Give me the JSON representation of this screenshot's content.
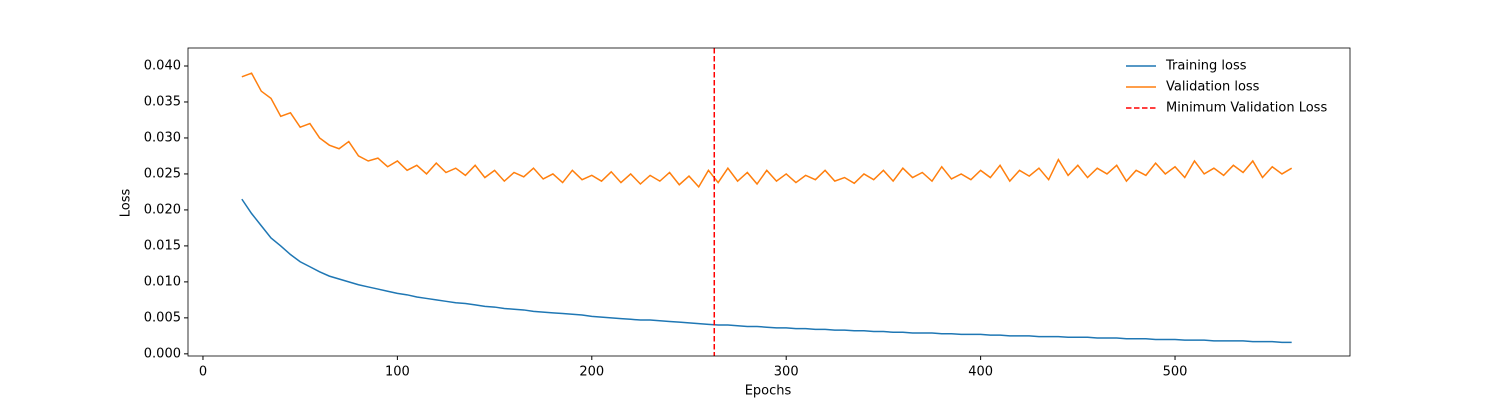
{
  "chart_data": {
    "type": "line",
    "xlabel": "Epochs",
    "ylabel": "Loss",
    "x": [
      20,
      25,
      30,
      35,
      40,
      45,
      50,
      55,
      60,
      65,
      70,
      75,
      80,
      85,
      90,
      95,
      100,
      105,
      110,
      115,
      120,
      125,
      130,
      135,
      140,
      145,
      150,
      155,
      160,
      165,
      170,
      175,
      180,
      185,
      190,
      195,
      200,
      205,
      210,
      215,
      220,
      225,
      230,
      235,
      240,
      245,
      250,
      255,
      260,
      265,
      270,
      275,
      280,
      285,
      290,
      295,
      300,
      305,
      310,
      315,
      320,
      325,
      330,
      335,
      340,
      345,
      350,
      355,
      360,
      365,
      370,
      375,
      380,
      385,
      390,
      395,
      400,
      405,
      410,
      415,
      420,
      425,
      430,
      435,
      440,
      445,
      450,
      455,
      460,
      465,
      470,
      475,
      480,
      485,
      490,
      495,
      500,
      505,
      510,
      515,
      520,
      525,
      530,
      535,
      540,
      545,
      550,
      555,
      560
    ],
    "series": [
      {
        "name": "Training loss",
        "color": "#1f77b4",
        "values": [
          0.0215,
          0.0195,
          0.0178,
          0.0161,
          0.015,
          0.0138,
          0.0128,
          0.0121,
          0.0114,
          0.0108,
          0.0104,
          0.01,
          0.0096,
          0.0093,
          0.009,
          0.0087,
          0.0084,
          0.0082,
          0.0079,
          0.0077,
          0.0075,
          0.0073,
          0.0071,
          0.007,
          0.0068,
          0.0066,
          0.0065,
          0.0063,
          0.0062,
          0.0061,
          0.0059,
          0.0058,
          0.0057,
          0.0056,
          0.0055,
          0.0054,
          0.0052,
          0.0051,
          0.005,
          0.0049,
          0.0048,
          0.0047,
          0.0047,
          0.0046,
          0.0045,
          0.0044,
          0.0043,
          0.0042,
          0.0041,
          0.004,
          0.004,
          0.0039,
          0.0038,
          0.0038,
          0.0037,
          0.0036,
          0.0036,
          0.0035,
          0.0035,
          0.0034,
          0.0034,
          0.0033,
          0.0033,
          0.0032,
          0.0032,
          0.0031,
          0.0031,
          0.003,
          0.003,
          0.0029,
          0.0029,
          0.0029,
          0.0028,
          0.0028,
          0.0027,
          0.0027,
          0.0027,
          0.0026,
          0.0026,
          0.0025,
          0.0025,
          0.0025,
          0.0024,
          0.0024,
          0.0024,
          0.0023,
          0.0023,
          0.0023,
          0.0022,
          0.0022,
          0.0022,
          0.0021,
          0.0021,
          0.0021,
          0.002,
          0.002,
          0.002,
          0.0019,
          0.0019,
          0.0019,
          0.0018,
          0.0018,
          0.0018,
          0.0018,
          0.0017,
          0.0017,
          0.0017,
          0.0016,
          0.0016
        ]
      },
      {
        "name": "Validation loss",
        "color": "#ff7f0e",
        "values": [
          0.0385,
          0.039,
          0.0365,
          0.0355,
          0.033,
          0.0335,
          0.0315,
          0.032,
          0.03,
          0.029,
          0.0285,
          0.0295,
          0.0275,
          0.0268,
          0.0272,
          0.026,
          0.0268,
          0.0255,
          0.0262,
          0.025,
          0.0265,
          0.0252,
          0.0258,
          0.0248,
          0.0262,
          0.0245,
          0.0255,
          0.024,
          0.0252,
          0.0246,
          0.0258,
          0.0243,
          0.025,
          0.0238,
          0.0255,
          0.0242,
          0.0248,
          0.024,
          0.0253,
          0.0238,
          0.025,
          0.0236,
          0.0248,
          0.024,
          0.0252,
          0.0235,
          0.0247,
          0.0232,
          0.0255,
          0.0238,
          0.0258,
          0.024,
          0.0252,
          0.0236,
          0.0255,
          0.024,
          0.025,
          0.0238,
          0.0248,
          0.0242,
          0.0255,
          0.024,
          0.0245,
          0.0237,
          0.025,
          0.0242,
          0.0255,
          0.024,
          0.0258,
          0.0245,
          0.0252,
          0.024,
          0.026,
          0.0243,
          0.025,
          0.0242,
          0.0255,
          0.0245,
          0.0262,
          0.024,
          0.0255,
          0.0247,
          0.0258,
          0.0242,
          0.027,
          0.0248,
          0.0262,
          0.0245,
          0.0258,
          0.025,
          0.0262,
          0.024,
          0.0255,
          0.0248,
          0.0265,
          0.025,
          0.026,
          0.0245,
          0.0268,
          0.025,
          0.0258,
          0.0248,
          0.0262,
          0.0252,
          0.0268,
          0.0245,
          0.026,
          0.025,
          0.0258
        ]
      }
    ],
    "vline": {
      "name": "Minimum Validation Loss",
      "x": 263,
      "color": "#ff0000",
      "style": "dashed"
    },
    "xlim": [
      -7.7,
      590
    ],
    "ylim": [
      -0.0003,
      0.0425
    ],
    "xticks": [
      0,
      100,
      200,
      300,
      400,
      500
    ],
    "yticks": [
      {
        "value": 0,
        "label": "0.000"
      },
      0.005,
      {
        "value": 0.01,
        "label": "0.010"
      },
      0.015,
      {
        "value": 0.02,
        "label": "0.020"
      },
      0.025,
      {
        "value": 0.03,
        "label": "0.030"
      },
      0.035,
      {
        "value": 0.04,
        "label": "0.040"
      }
    ],
    "legend": "upper right",
    "grid": false
  }
}
